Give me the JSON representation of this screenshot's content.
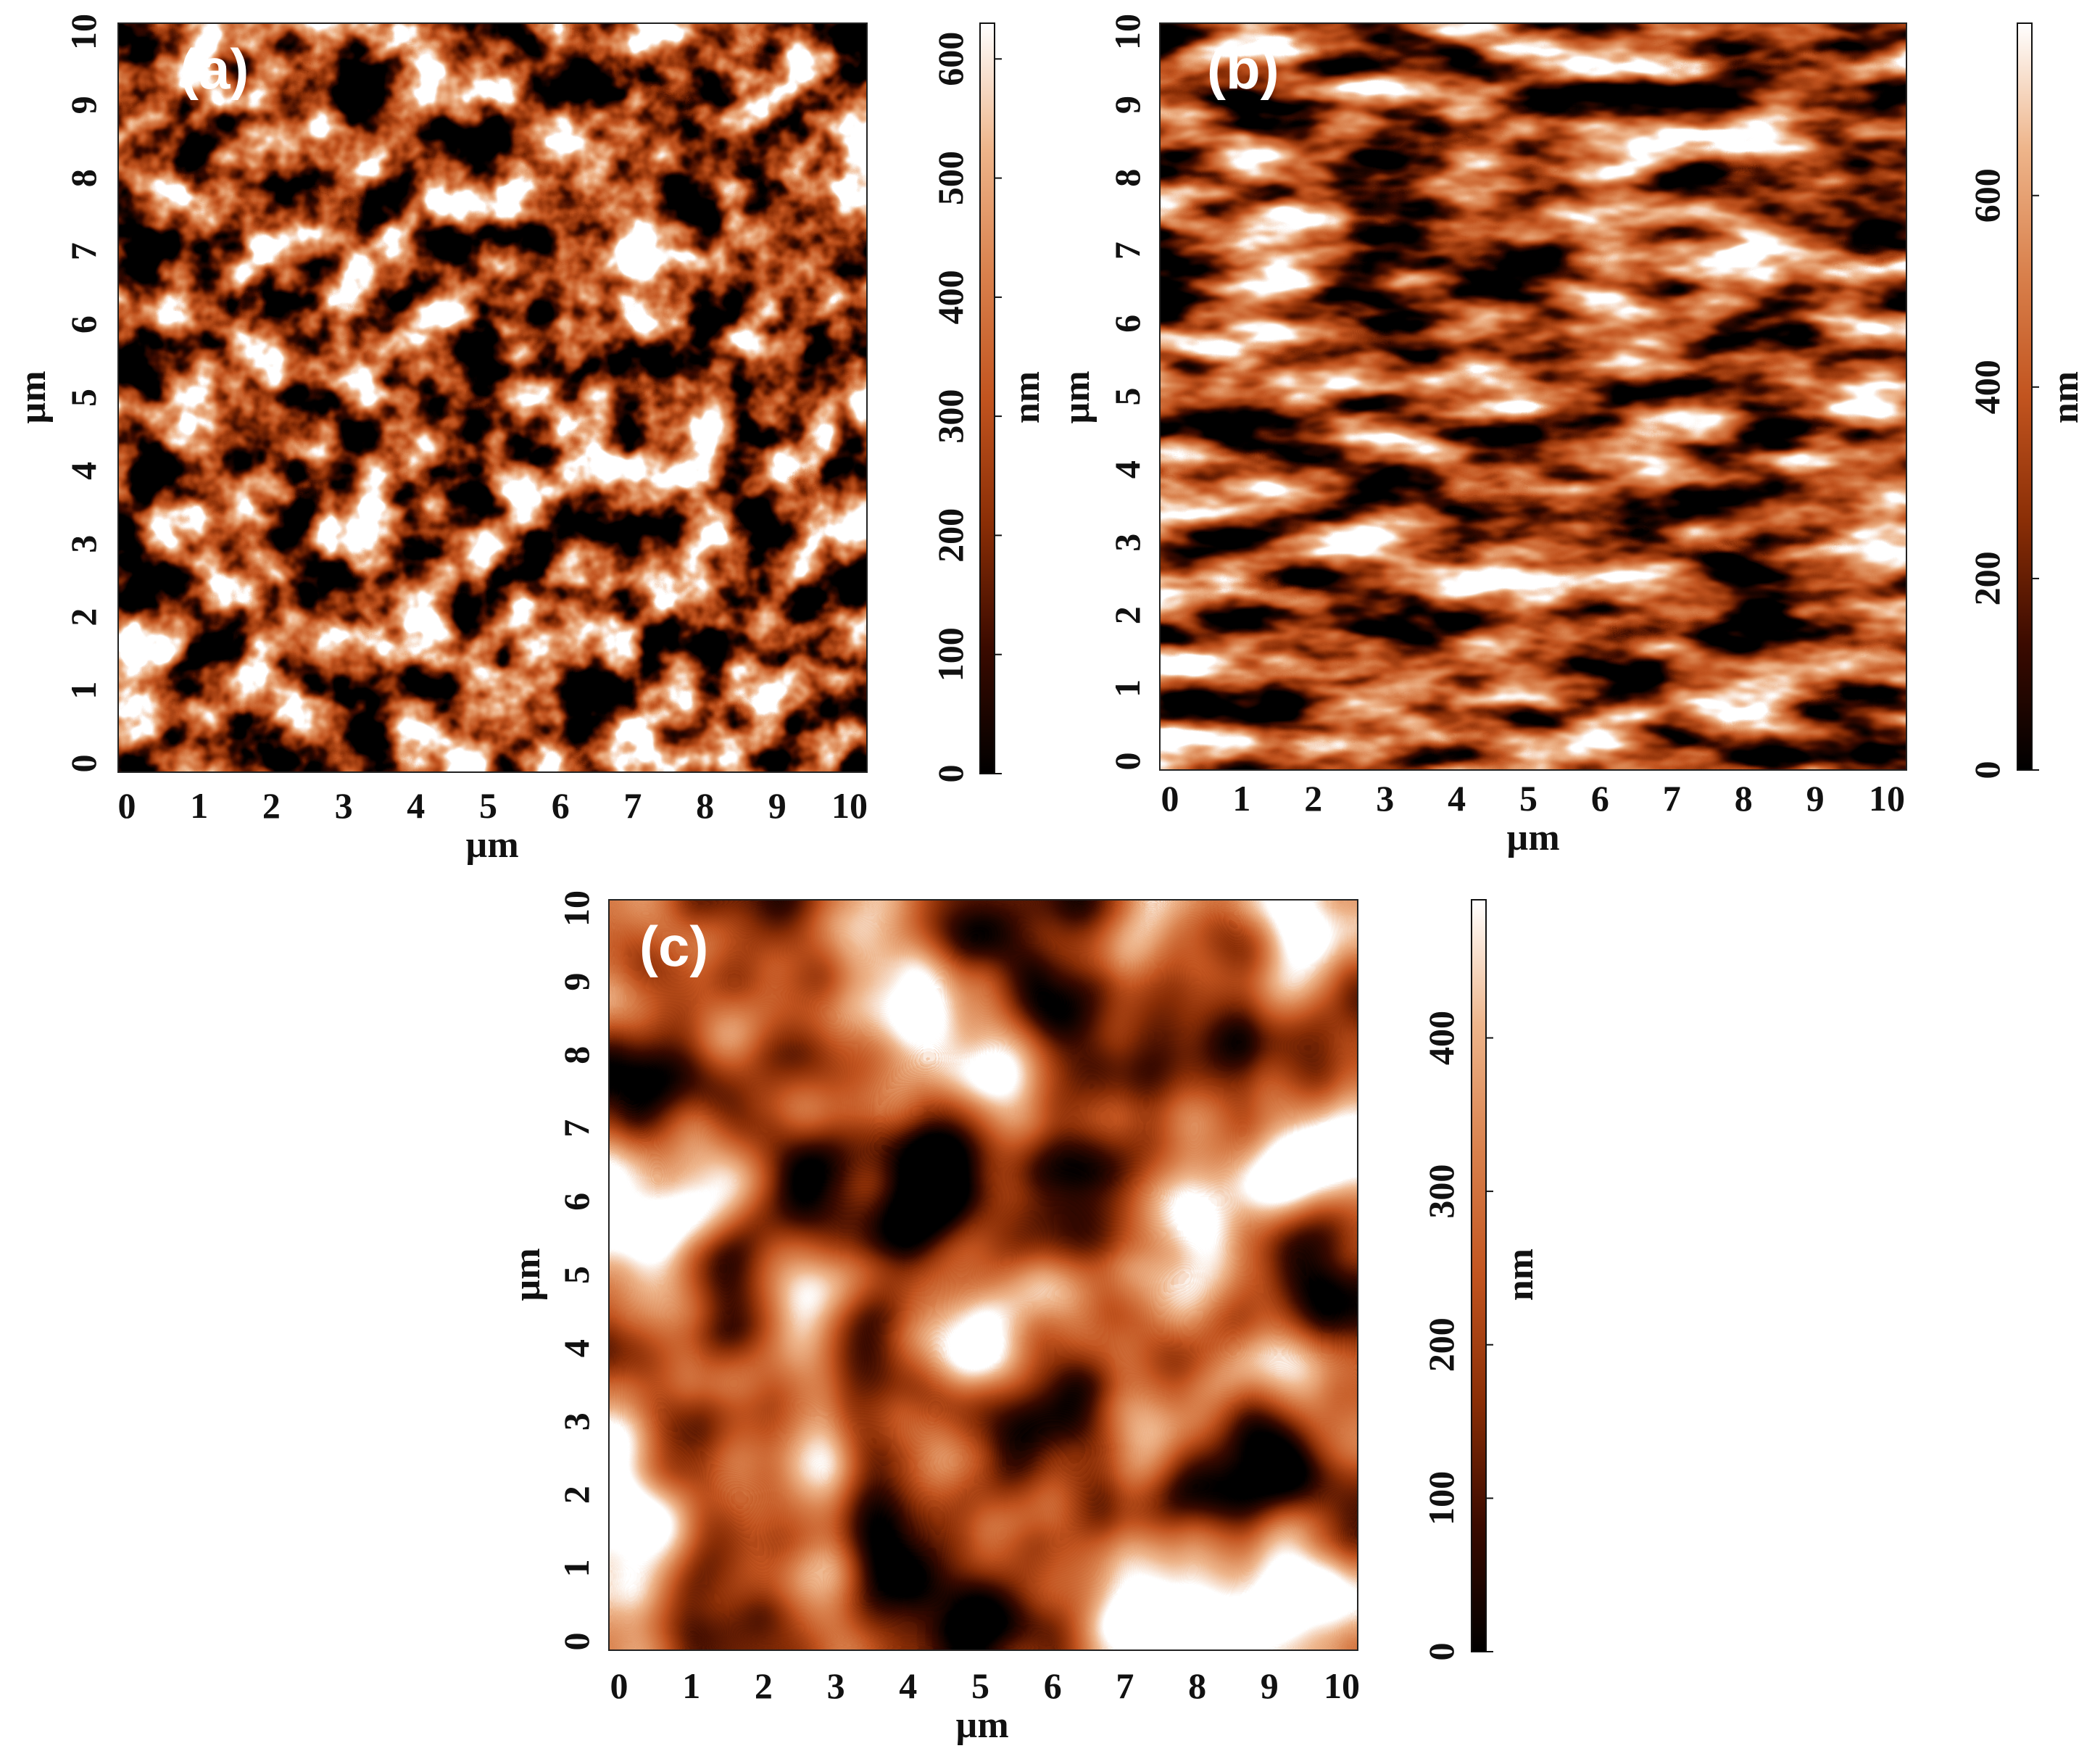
{
  "figure": {
    "colormap": [
      "#000000",
      "#3a0a00",
      "#8a2e06",
      "#c2541f",
      "#d9814d",
      "#eeb58b",
      "#ffffff"
    ],
    "panels": [
      {
        "id": "a",
        "label": "(a)",
        "x_ticks": [
          "0",
          "1",
          "2",
          "3",
          "4",
          "5",
          "6",
          "7",
          "8",
          "9",
          "10"
        ],
        "y_ticks": [
          "0",
          "1",
          "2",
          "3",
          "4",
          "5",
          "6",
          "7",
          "8",
          "9",
          "10"
        ],
        "x_label": "µm",
        "y_label": "µm",
        "colorbar_ticks": [
          "0",
          "100",
          "200",
          "300",
          "400",
          "500",
          "600"
        ],
        "colorbar_max": 630,
        "colorbar_unit": "nm",
        "texture": "grainy-fine"
      },
      {
        "id": "b",
        "label": "(b)",
        "x_ticks": [
          "0",
          "1",
          "2",
          "3",
          "4",
          "5",
          "6",
          "7",
          "8",
          "9",
          "10"
        ],
        "y_ticks": [
          "0",
          "1",
          "2",
          "3",
          "4",
          "5",
          "6",
          "7",
          "8",
          "9",
          "10"
        ],
        "x_label": "µm",
        "y_label": "µm",
        "colorbar_ticks": [
          "0",
          "200",
          "400",
          "600"
        ],
        "colorbar_max": 780,
        "colorbar_unit": "nm",
        "texture": "streaky"
      },
      {
        "id": "c",
        "label": "(c)",
        "x_ticks": [
          "0",
          "1",
          "2",
          "3",
          "4",
          "5",
          "6",
          "7",
          "8",
          "9",
          "10"
        ],
        "y_ticks": [
          "0",
          "1",
          "2",
          "3",
          "4",
          "5",
          "6",
          "7",
          "8",
          "9",
          "10"
        ],
        "x_label": "µm",
        "y_label": "µm",
        "colorbar_ticks": [
          "0",
          "100",
          "200",
          "300",
          "400"
        ],
        "colorbar_max": 490,
        "colorbar_unit": "nm",
        "texture": "smooth-blobs"
      }
    ]
  }
}
